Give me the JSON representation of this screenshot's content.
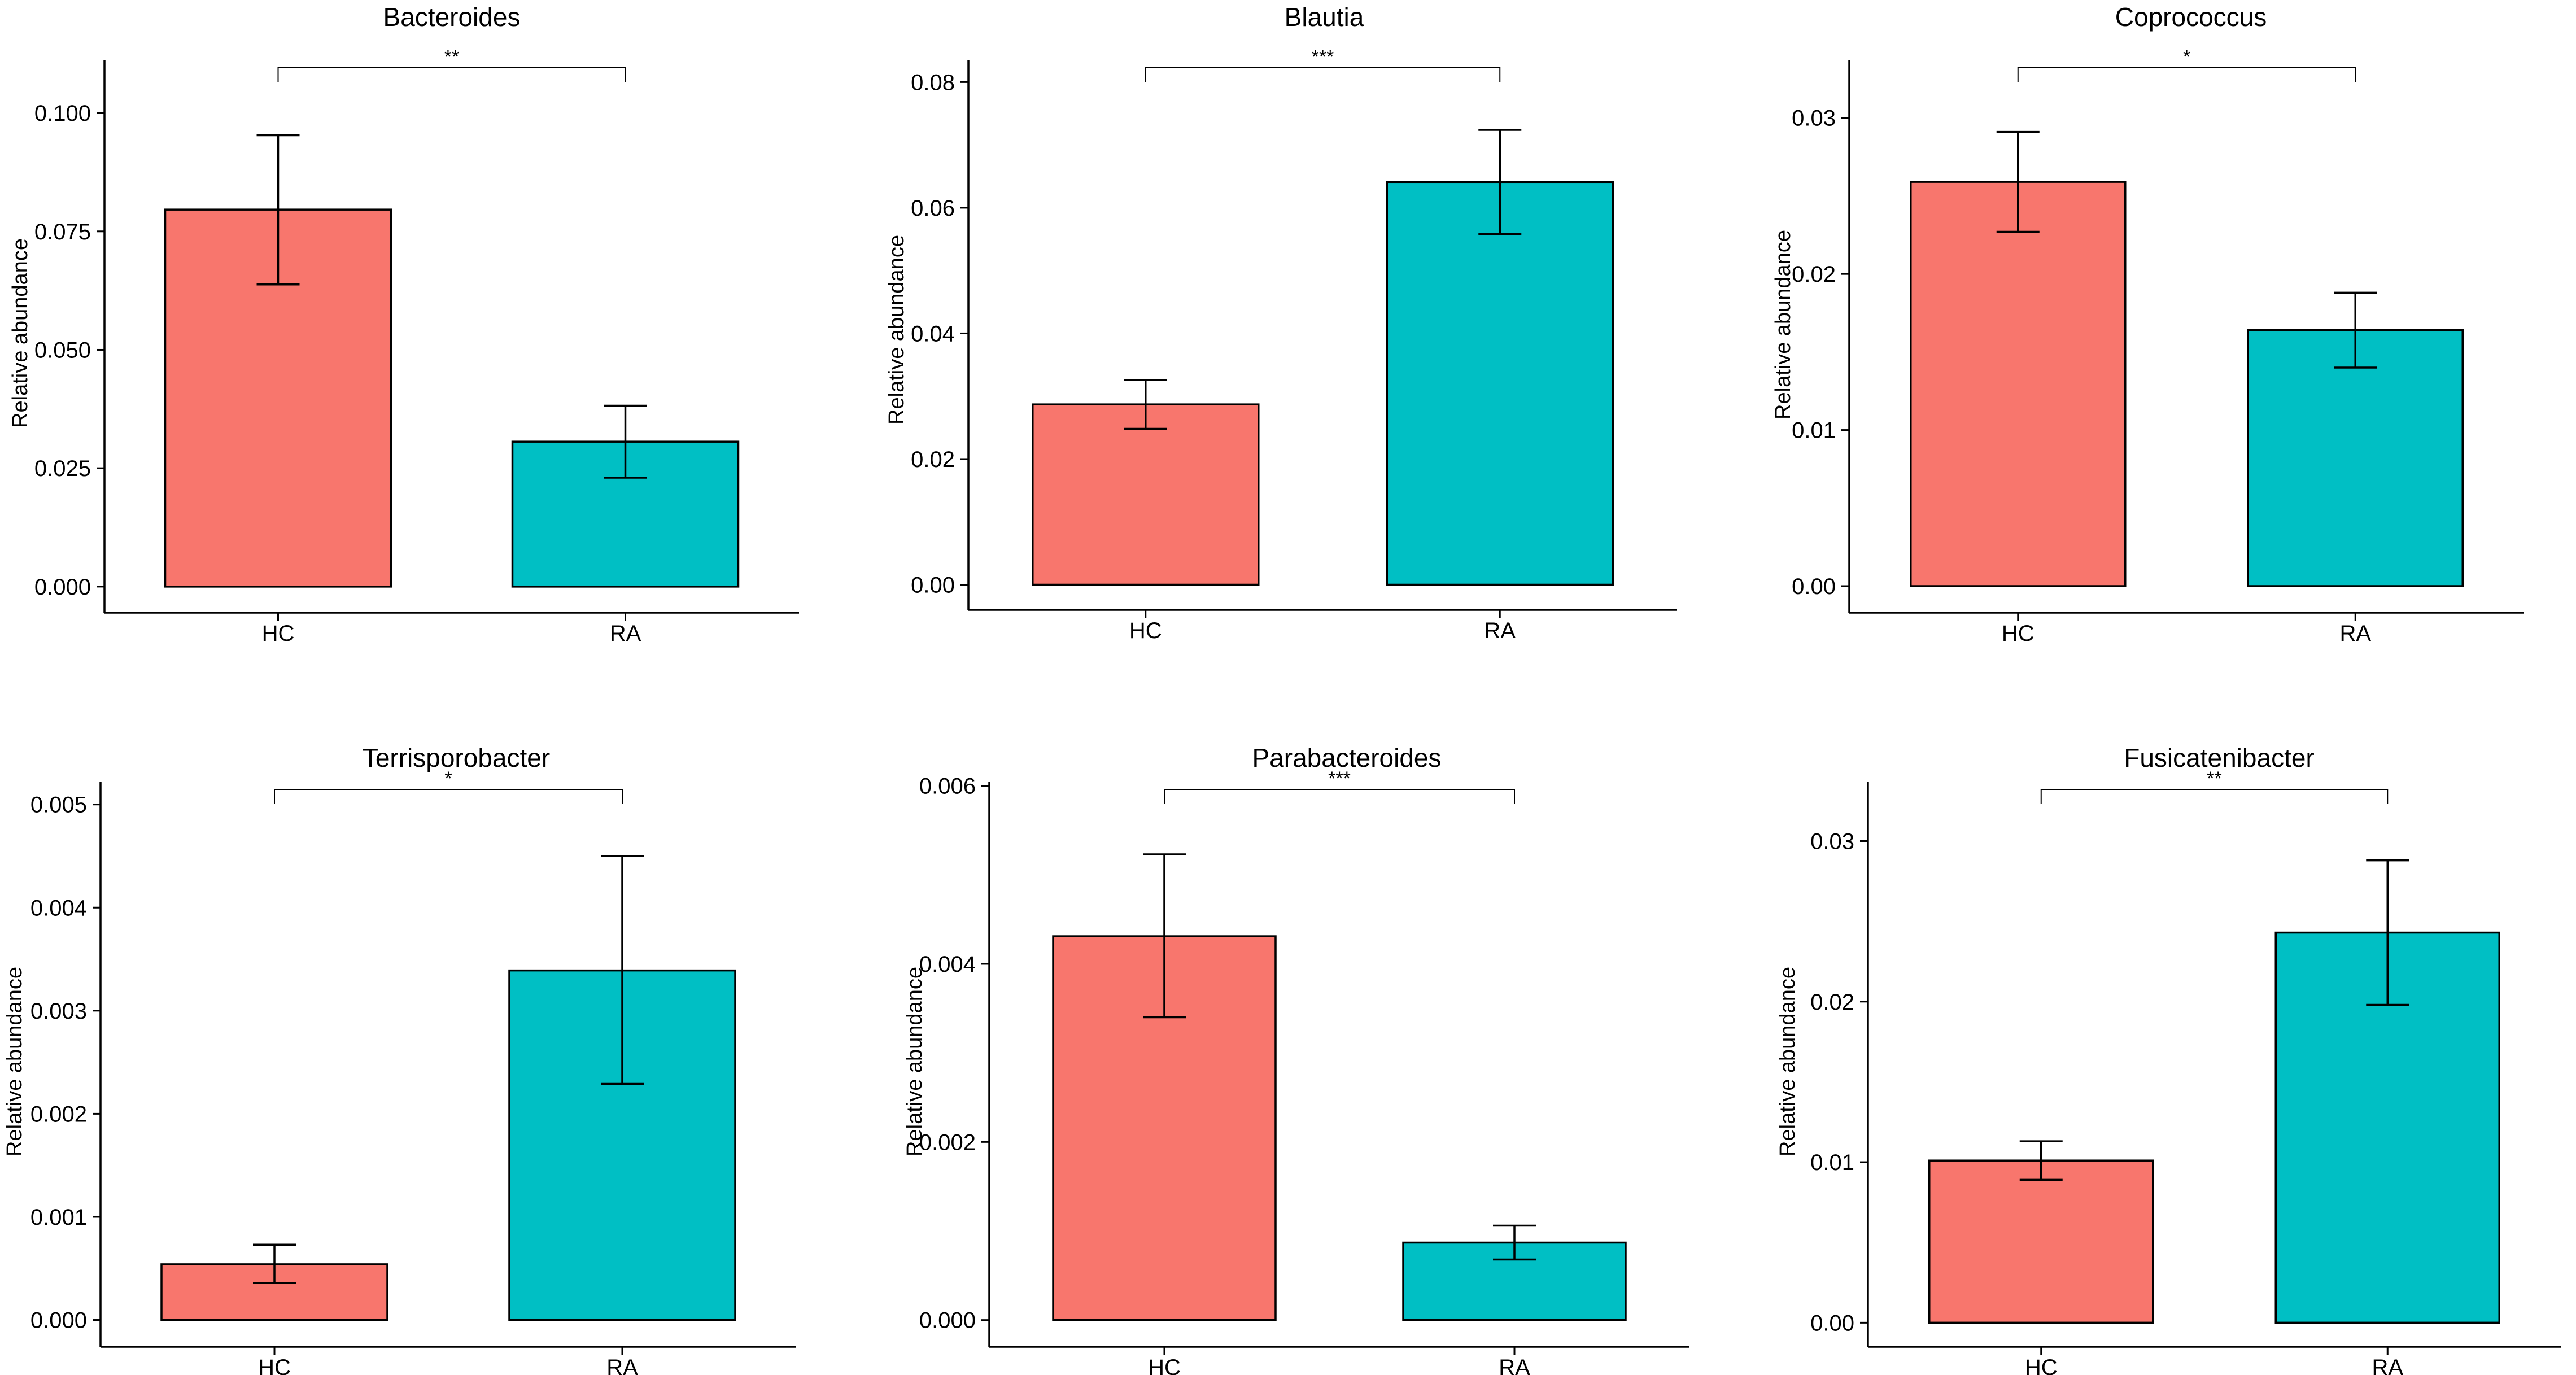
{
  "colors": {
    "HC": "#F8766D",
    "RA": "#00BFC4",
    "outline": "#000000",
    "background": "#ffffff"
  },
  "chart_data": [
    {
      "type": "bar",
      "title": "Bacteroides",
      "xlabel": "",
      "ylabel": "Relative abundance",
      "categories": [
        "HC",
        "RA"
      ],
      "values": [
        0.0796,
        0.0306
      ],
      "error_low": [
        0.0638,
        0.023
      ],
      "error_high": [
        0.0953,
        0.0382
      ],
      "ylim": [
        -0.0055,
        0.1105
      ],
      "yticks": [
        0,
        0.025,
        0.05,
        0.075,
        0.1
      ],
      "ytick_labels": [
        "0.000",
        "0.025",
        "0.050",
        "0.075",
        "0.100"
      ],
      "significance": "**",
      "grid": false
    },
    {
      "type": "bar",
      "title": "Blautia",
      "xlabel": "",
      "ylabel": "Relative abundance",
      "categories": [
        "HC",
        "RA"
      ],
      "values": [
        0.0287,
        0.0641
      ],
      "error_low": [
        0.0248,
        0.0558
      ],
      "error_high": [
        0.0326,
        0.0724
      ],
      "ylim": [
        -0.004,
        0.083
      ],
      "yticks": [
        0,
        0.02,
        0.04,
        0.06,
        0.08
      ],
      "ytick_labels": [
        "0.00",
        "0.02",
        "0.04",
        "0.06",
        "0.08"
      ],
      "significance": "***",
      "grid": false
    },
    {
      "type": "bar",
      "title": "Coprococcus",
      "xlabel": "",
      "ylabel": "Relative abundance",
      "categories": [
        "HC",
        "RA"
      ],
      "values": [
        0.0259,
        0.0164
      ],
      "error_low": [
        0.0227,
        0.014
      ],
      "error_high": [
        0.0291,
        0.0188
      ],
      "ylim": [
        -0.0017,
        0.0335
      ],
      "yticks": [
        0,
        0.01,
        0.02,
        0.03
      ],
      "ytick_labels": [
        "0.00",
        "0.01",
        "0.02",
        "0.03"
      ],
      "significance": "*",
      "grid": false
    },
    {
      "type": "bar",
      "title": "Terrisporobacter",
      "xlabel": "",
      "ylabel": "Relative abundance",
      "categories": [
        "HC",
        "RA"
      ],
      "values": [
        0.00054,
        0.00339
      ],
      "error_low": [
        0.00036,
        0.00229
      ],
      "error_high": [
        0.00073,
        0.0045
      ],
      "ylim": [
        -0.00026,
        0.00519
      ],
      "yticks": [
        0,
        0.001,
        0.002,
        0.003,
        0.004,
        0.005
      ],
      "ytick_labels": [
        "0.000",
        "0.001",
        "0.002",
        "0.003",
        "0.004",
        "0.005"
      ],
      "significance": "*",
      "grid": false
    },
    {
      "type": "bar",
      "title": "Parabacteroides",
      "xlabel": "",
      "ylabel": "Relative abundance",
      "categories": [
        "HC",
        "RA"
      ],
      "values": [
        0.00431,
        0.00087
      ],
      "error_low": [
        0.0034,
        0.00068
      ],
      "error_high": [
        0.00523,
        0.00106
      ],
      "ylim": [
        -0.0003,
        0.00601
      ],
      "yticks": [
        0,
        0.002,
        0.004,
        0.006
      ],
      "ytick_labels": [
        "0.000",
        "0.002",
        "0.004",
        "0.006"
      ],
      "significance": "***",
      "grid": false
    },
    {
      "type": "bar",
      "title": "Fusicatenibacter",
      "xlabel": "",
      "ylabel": "Relative abundance",
      "categories": [
        "HC",
        "RA"
      ],
      "values": [
        0.0101,
        0.0243
      ],
      "error_low": [
        0.0089,
        0.0198
      ],
      "error_high": [
        0.0113,
        0.0288
      ],
      "ylim": [
        -0.0015,
        0.0335
      ],
      "yticks": [
        0,
        0.01,
        0.02,
        0.03
      ],
      "ytick_labels": [
        "0.00",
        "0.01",
        "0.02",
        "0.03"
      ],
      "significance": "**",
      "grid": false
    }
  ]
}
